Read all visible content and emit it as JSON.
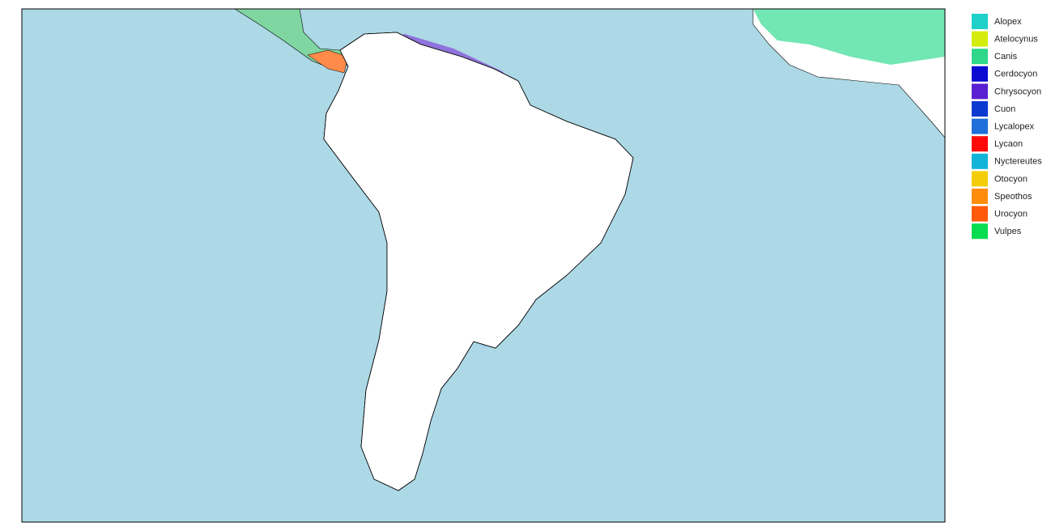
{
  "legend": {
    "items": [
      {
        "name": "Alopex",
        "color": "#1fd1c8"
      },
      {
        "name": "Atelocynus",
        "color": "#d4ec0e"
      },
      {
        "name": "Canis",
        "color": "#2ed78a"
      },
      {
        "name": "Cerdocyon",
        "color": "#0a0ad0"
      },
      {
        "name": "Chrysocyon",
        "color": "#5a1fd0"
      },
      {
        "name": "Cuon",
        "color": "#0a3ad0"
      },
      {
        "name": "Lycalopex",
        "color": "#1e6fd8"
      },
      {
        "name": "Lycaon",
        "color": "#ff0a0a"
      },
      {
        "name": "Nyctereutes",
        "color": "#12b4d8"
      },
      {
        "name": "Otocyon",
        "color": "#f3cd0a"
      },
      {
        "name": "Speothos",
        "color": "#ff8c0a"
      },
      {
        "name": "Urocyon",
        "color": "#ff5a0a"
      },
      {
        "name": "Vulpes",
        "color": "#0adc50"
      }
    ]
  }
}
